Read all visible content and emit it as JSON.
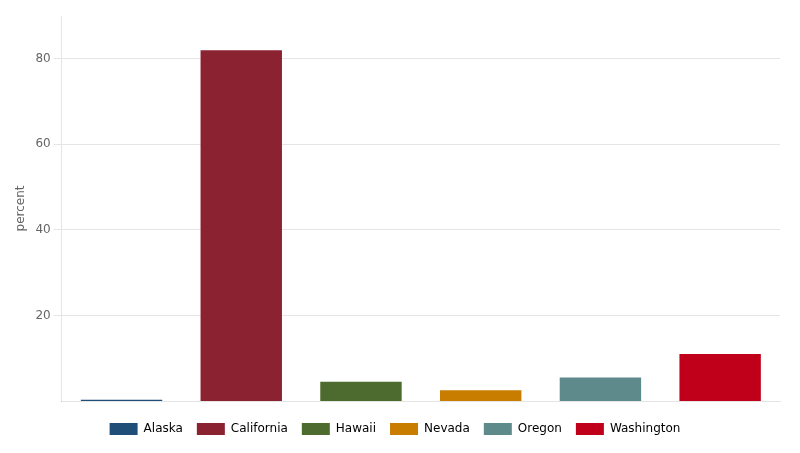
{
  "chart_data": {
    "type": "bar",
    "categories": [
      "Alaska",
      "California",
      "Hawaii",
      "Nevada",
      "Oregon",
      "Washington"
    ],
    "values": [
      0.3,
      82.0,
      4.5,
      2.5,
      5.5,
      11.0
    ],
    "colors": [
      "#1f4e79",
      "#8b2232",
      "#4d6b2e",
      "#c87d00",
      "#5f8a8b",
      "#c0001a"
    ],
    "ylabel": "percent",
    "ylim": [
      0,
      90
    ],
    "yticks": [
      20,
      40,
      60,
      80
    ],
    "grid": true,
    "legend": "bottom",
    "tick_labels": "y"
  }
}
